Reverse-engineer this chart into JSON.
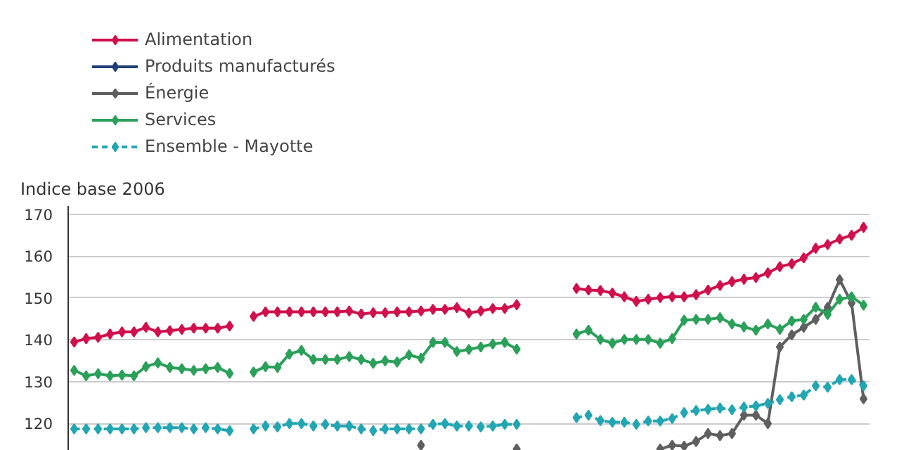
{
  "chart_data": {
    "type": "line",
    "ylabel": "Indice base 2006",
    "categories": [
      null,
      null,
      null,
      null,
      null,
      null,
      null,
      null,
      null,
      null,
      null,
      null,
      null,
      null,
      null,
      null,
      null,
      null,
      null,
      null,
      null,
      null,
      null,
      null,
      null,
      null,
      null,
      null,
      null,
      null,
      null,
      null,
      null,
      null,
      null,
      null,
      null,
      null,
      null,
      null,
      null,
      null,
      null,
      null,
      null,
      null,
      null,
      null,
      null,
      null,
      null,
      null,
      null,
      null,
      null,
      null,
      null,
      null,
      null,
      null,
      null,
      null,
      null,
      null,
      null,
      null,
      null
    ],
    "series": [
      {
        "name": "Alimentation",
        "color": "#d0104c",
        "values": [
          139.5,
          140.3,
          140.6,
          141.4,
          141.9,
          141.9,
          143.0,
          141.9,
          142.2,
          142.5,
          142.8,
          142.8,
          142.8,
          143.3,
          null,
          145.6,
          146.7,
          146.7,
          146.7,
          146.7,
          146.7,
          146.7,
          146.7,
          146.9,
          146.2,
          146.5,
          146.5,
          146.7,
          146.7,
          146.9,
          147.3,
          147.3,
          147.7,
          146.4,
          146.9,
          147.5,
          147.5,
          148.4,
          null,
          null,
          null,
          null,
          152.3,
          151.9,
          151.8,
          151.2,
          150.3,
          149.2,
          149.7,
          150.1,
          150.3,
          150.3,
          150.8,
          151.9,
          153.0,
          153.9,
          154.5,
          154.9,
          156.0,
          157.5,
          158.2,
          159.6,
          161.9,
          162.8,
          164.1,
          165.0,
          166.9
        ]
      },
      {
        "name": "Produits manufacturés",
        "color": "#1f3f7a",
        "values": [
          null,
          null,
          null,
          null,
          null,
          null,
          null,
          null,
          null,
          null,
          null,
          null,
          null,
          null,
          null,
          null,
          null,
          null,
          null,
          null,
          null,
          null,
          null,
          null,
          null,
          null,
          null,
          null,
          null,
          null,
          null,
          null,
          null,
          null,
          null,
          null,
          null,
          null,
          null,
          null,
          null,
          null,
          null,
          null,
          null,
          null,
          null,
          null,
          null,
          null,
          null,
          null,
          null,
          null,
          null,
          null,
          null,
          null,
          null,
          null,
          null,
          null,
          null,
          null,
          null,
          null,
          null
        ]
      },
      {
        "name": "Énergie",
        "color": "#5f5f5f",
        "values": [
          null,
          null,
          null,
          null,
          null,
          null,
          null,
          null,
          null,
          null,
          null,
          null,
          null,
          null,
          null,
          null,
          null,
          null,
          null,
          null,
          null,
          null,
          null,
          null,
          null,
          null,
          null,
          null,
          null,
          114.8,
          null,
          null,
          null,
          null,
          null,
          null,
          null,
          113.9,
          null,
          null,
          null,
          null,
          null,
          null,
          null,
          null,
          null,
          null,
          null,
          113.9,
          114.8,
          114.6,
          115.7,
          117.6,
          117.1,
          117.6,
          122.0,
          122.0,
          120.0,
          138.3,
          141.2,
          143.0,
          144.9,
          147.8,
          154.4,
          148.8,
          125.9
        ]
      },
      {
        "name": "Services",
        "color": "#2ba05a",
        "values": [
          132.7,
          131.4,
          131.9,
          131.4,
          131.6,
          131.4,
          133.6,
          134.5,
          133.4,
          133.1,
          132.7,
          133.1,
          133.4,
          132.0,
          null,
          132.3,
          133.6,
          133.4,
          136.6,
          137.5,
          135.3,
          135.3,
          135.3,
          136.0,
          135.3,
          134.4,
          135.0,
          134.7,
          136.4,
          135.6,
          139.4,
          139.4,
          137.2,
          137.7,
          138.3,
          139.0,
          139.4,
          137.8,
          null,
          null,
          null,
          null,
          141.4,
          142.3,
          140.1,
          139.2,
          140.1,
          140.1,
          140.1,
          139.2,
          140.3,
          144.7,
          144.9,
          144.9,
          145.3,
          143.8,
          143.1,
          142.3,
          143.8,
          142.5,
          144.5,
          144.9,
          147.8,
          146.1,
          149.7,
          150.3,
          148.3
        ]
      },
      {
        "name": "Ensemble - Mayotte",
        "color": "#22a6b3",
        "line_style": "dashed",
        "values": [
          118.7,
          118.7,
          118.7,
          118.7,
          118.7,
          118.7,
          119.0,
          119.0,
          119.0,
          119.0,
          118.7,
          119.0,
          118.7,
          118.3,
          null,
          118.7,
          119.4,
          119.2,
          120.0,
          120.0,
          119.4,
          119.8,
          119.4,
          119.4,
          118.7,
          118.3,
          118.7,
          118.7,
          118.7,
          118.7,
          119.8,
          120.0,
          119.4,
          119.4,
          119.2,
          119.4,
          119.8,
          119.8,
          null,
          null,
          null,
          null,
          121.4,
          122.0,
          120.7,
          120.3,
          120.3,
          119.8,
          120.6,
          120.6,
          121.2,
          122.6,
          123.1,
          123.4,
          123.7,
          123.3,
          123.9,
          124.2,
          124.8,
          125.7,
          126.4,
          126.8,
          129.0,
          128.7,
          130.5,
          130.5,
          129.0
        ]
      }
    ],
    "ylim": [
      113.5,
      172
    ],
    "yticks": [
      120,
      130,
      140,
      150,
      160,
      170
    ],
    "tick_labels": "y",
    "grid": "y",
    "legend": "top left",
    "marker": "diamond",
    "line_style": "solid"
  }
}
